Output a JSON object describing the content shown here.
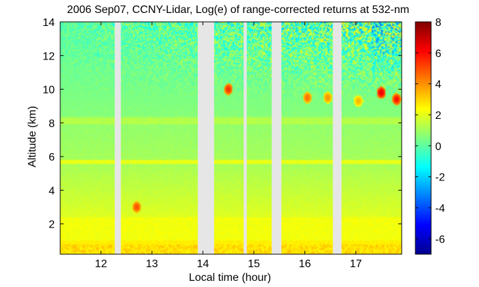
{
  "chart_data": {
    "type": "heatmap",
    "title": "2006 Sep07, CCNY-Lidar, Log(e) of range-corrected returns at 532-nm",
    "xlabel": "Local time (hour)",
    "ylabel": "Altitude (km)",
    "xlim": [
      11.2,
      17.9
    ],
    "ylim": [
      0.2,
      14
    ],
    "x_ticks": [
      12,
      13,
      14,
      15,
      16,
      17
    ],
    "y_ticks": [
      2,
      4,
      6,
      8,
      10,
      12,
      14
    ],
    "colorbar": {
      "range": [
        -7,
        8
      ],
      "ticks": [
        8,
        6,
        4,
        2,
        0,
        -2,
        -4,
        -6
      ],
      "colormap": "jet"
    },
    "data_gaps_hours": [
      [
        12.27,
        12.39
      ],
      [
        13.9,
        14.22
      ],
      [
        14.8,
        14.86
      ],
      [
        15.35,
        15.54
      ],
      [
        16.55,
        16.72
      ]
    ],
    "features": {
      "aerosol_layer_base_km": 0.3,
      "aerosol_layer_top_km": 2.4,
      "aerosol_layer_value": 2.2,
      "thin_layer_km": 5.7,
      "elevated_layer_km": 8.1,
      "clouds": [
        {
          "time": 14.5,
          "altitude_km": 10.0,
          "value": 5.5
        },
        {
          "time": 16.05,
          "altitude_km": 9.5,
          "value": 4.5
        },
        {
          "time": 16.45,
          "altitude_km": 9.5,
          "value": 4.0
        },
        {
          "time": 17.05,
          "altitude_km": 9.3,
          "value": 3.5
        },
        {
          "time": 17.5,
          "altitude_km": 9.8,
          "value": 6.5
        },
        {
          "time": 17.8,
          "altitude_km": 9.4,
          "value": 6.0
        },
        {
          "time": 12.7,
          "altitude_km": 3.0,
          "value": 5.0
        }
      ]
    }
  }
}
